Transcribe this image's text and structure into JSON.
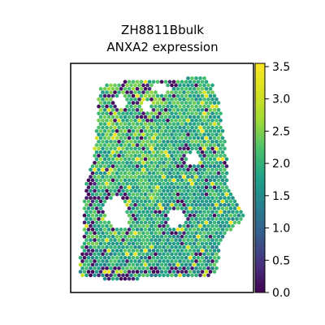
{
  "chart_data": {
    "type": "scatter",
    "title": "ZH8811Bbulk",
    "subtitle": "ANXA2 expression",
    "xlabel": "",
    "ylabel": "",
    "colormap": "viridis",
    "color_range": [
      0.0,
      3.55
    ],
    "colorbar_ticks": [
      "0.0",
      "0.5",
      "1.0",
      "1.5",
      "2.0",
      "2.5",
      "3.0",
      "3.5"
    ],
    "colorbar_tick_values": [
      0.0,
      0.5,
      1.0,
      1.5,
      2.0,
      2.5,
      3.0,
      3.5
    ],
    "typical_value": 2.0,
    "grid": false,
    "axis_ticks": false,
    "colorbar_position": "right"
  }
}
